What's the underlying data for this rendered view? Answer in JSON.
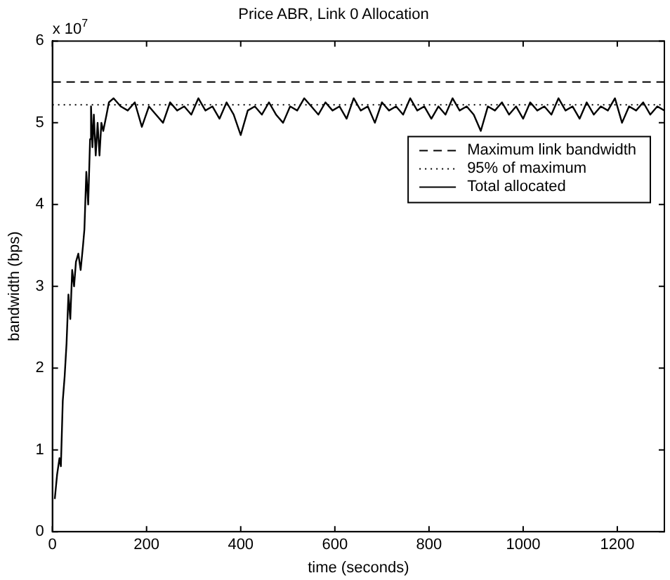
{
  "chart_data": {
    "type": "line",
    "title": "Price ABR, Link 0 Allocation",
    "xlabel": "time (seconds)",
    "ylabel": "bandwidth (bps)",
    "annotations": [
      "x 10$^{7}$"
    ],
    "xlim": [
      0,
      1300
    ],
    "xticks": [
      0,
      200,
      400,
      600,
      800,
      1000,
      1200
    ],
    "ylim": [
      0,
      6
    ],
    "yticks": [
      0,
      1,
      2,
      3,
      4,
      5,
      6
    ],
    "grid": false,
    "legend": "top right",
    "marker": "none",
    "series": [
      {
        "name": "Maximum link bandwidth",
        "color": "#000000",
        "line_style": "dashed",
        "x": [
          0,
          1300
        ],
        "values": [
          5.5,
          5.5
        ]
      },
      {
        "name": "95% of maximum",
        "color": "#000000",
        "line_style": "dotted",
        "x": [
          0,
          1300
        ],
        "values": [
          5.22,
          5.22
        ]
      },
      {
        "name": "Total allocated",
        "color": "#000000",
        "line_style": "solid",
        "x": [
          5,
          10,
          15,
          18,
          22,
          26,
          30,
          34,
          38,
          42,
          46,
          50,
          55,
          60,
          65,
          68,
          72,
          76,
          80,
          82,
          85,
          88,
          92,
          96,
          100,
          104,
          108,
          115,
          120,
          130,
          145,
          160,
          175,
          190,
          205,
          220,
          235,
          250,
          265,
          280,
          295,
          310,
          325,
          340,
          355,
          370,
          385,
          400,
          415,
          430,
          445,
          460,
          475,
          490,
          505,
          520,
          535,
          550,
          565,
          580,
          595,
          610,
          625,
          640,
          655,
          670,
          685,
          700,
          715,
          730,
          745,
          760,
          775,
          790,
          805,
          820,
          835,
          850,
          865,
          880,
          895,
          910,
          925,
          940,
          955,
          970,
          985,
          1000,
          1015,
          1030,
          1045,
          1060,
          1075,
          1090,
          1105,
          1120,
          1135,
          1150,
          1165,
          1180,
          1195,
          1210,
          1225,
          1240,
          1255,
          1270,
          1285,
          1300
        ],
        "values": [
          0.4,
          0.7,
          0.9,
          0.8,
          1.6,
          1.9,
          2.3,
          2.9,
          2.6,
          3.2,
          3.0,
          3.3,
          3.4,
          3.2,
          3.5,
          3.7,
          4.4,
          4.0,
          4.8,
          5.2,
          4.7,
          5.1,
          4.6,
          5.0,
          4.6,
          5.0,
          4.9,
          5.1,
          5.25,
          5.3,
          5.2,
          5.15,
          5.25,
          4.95,
          5.2,
          5.1,
          5.0,
          5.25,
          5.15,
          5.2,
          5.1,
          5.3,
          5.15,
          5.2,
          5.05,
          5.25,
          5.1,
          4.85,
          5.15,
          5.2,
          5.1,
          5.25,
          5.1,
          5.0,
          5.2,
          5.15,
          5.3,
          5.2,
          5.1,
          5.25,
          5.15,
          5.2,
          5.05,
          5.3,
          5.15,
          5.2,
          5.0,
          5.25,
          5.15,
          5.2,
          5.1,
          5.3,
          5.15,
          5.2,
          5.05,
          5.2,
          5.1,
          5.3,
          5.15,
          5.2,
          5.1,
          4.9,
          5.2,
          5.15,
          5.25,
          5.1,
          5.2,
          5.05,
          5.25,
          5.15,
          5.2,
          5.1,
          5.3,
          5.15,
          5.2,
          5.05,
          5.25,
          5.1,
          5.2,
          5.15,
          5.3,
          5.0,
          5.2,
          5.15,
          5.25,
          5.1,
          5.2,
          5.15
        ]
      }
    ]
  }
}
